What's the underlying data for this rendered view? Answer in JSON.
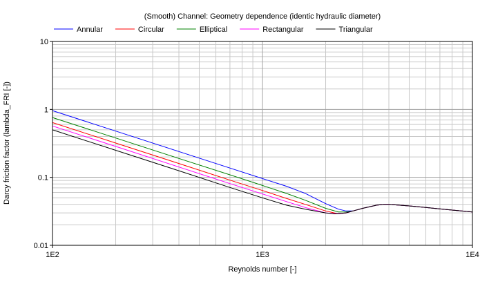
{
  "chart_data": {
    "type": "line",
    "title": "(Smooth) Channel: Geometry dependence (identic hydraulic diameter)",
    "xlabel": "Reynolds number [-]",
    "ylabel": "Darcy friction factor (lambda_FRI [-])",
    "xscale": "log",
    "yscale": "log",
    "xlim": [
      100,
      10000
    ],
    "ylim": [
      0.01,
      10
    ],
    "x_ticks": [
      {
        "value": 100,
        "label": "1E2"
      },
      {
        "value": 1000,
        "label": "1E3"
      },
      {
        "value": 10000,
        "label": "1E4"
      }
    ],
    "y_ticks": [
      {
        "value": 0.01,
        "label": "0.01"
      },
      {
        "value": 0.1,
        "label": "0.1"
      },
      {
        "value": 1,
        "label": "1"
      },
      {
        "value": 10,
        "label": "10"
      }
    ],
    "grid": true,
    "legend_position": "top",
    "series": [
      {
        "name": "Annular",
        "color": "#0000ff",
        "x": [
          100,
          200,
          400,
          700,
          1000,
          1300,
          1600,
          2000,
          2300,
          2500,
          2700,
          3000,
          3500,
          3800,
          4000,
          5000,
          6000,
          8000,
          10000
        ],
        "y": [
          0.96,
          0.48,
          0.24,
          0.137,
          0.096,
          0.074,
          0.058,
          0.041,
          0.034,
          0.032,
          0.032,
          0.035,
          0.039,
          0.04,
          0.04,
          0.038,
          0.036,
          0.033,
          0.031
        ]
      },
      {
        "name": "Circular",
        "color": "#ff0000",
        "x": [
          100,
          200,
          400,
          700,
          1000,
          1300,
          1600,
          2000,
          2300,
          2500,
          2700,
          3000,
          3500,
          3800,
          4000,
          5000,
          6000,
          8000,
          10000
        ],
        "y": [
          0.64,
          0.32,
          0.16,
          0.091,
          0.064,
          0.049,
          0.04,
          0.032,
          0.029,
          0.03,
          0.032,
          0.035,
          0.039,
          0.04,
          0.04,
          0.038,
          0.036,
          0.033,
          0.031
        ]
      },
      {
        "name": "Elliptical",
        "color": "#008000",
        "x": [
          100,
          200,
          400,
          700,
          1000,
          1300,
          1600,
          2000,
          2300,
          2500,
          2700,
          3000,
          3500,
          3800,
          4000,
          5000,
          6000,
          8000,
          10000
        ],
        "y": [
          0.76,
          0.38,
          0.19,
          0.109,
          0.076,
          0.058,
          0.046,
          0.035,
          0.031,
          0.031,
          0.032,
          0.035,
          0.039,
          0.04,
          0.04,
          0.038,
          0.036,
          0.033,
          0.031
        ]
      },
      {
        "name": "Rectangular",
        "color": "#ff00ff",
        "x": [
          100,
          200,
          400,
          700,
          1000,
          1300,
          1600,
          2000,
          2300,
          2500,
          2700,
          3000,
          3500,
          3800,
          4000,
          5000,
          6000,
          8000,
          10000
        ],
        "y": [
          0.57,
          0.285,
          0.142,
          0.081,
          0.057,
          0.044,
          0.036,
          0.03,
          0.029,
          0.03,
          0.032,
          0.035,
          0.039,
          0.04,
          0.04,
          0.038,
          0.036,
          0.033,
          0.031
        ]
      },
      {
        "name": "Triangular",
        "color": "#000000",
        "x": [
          100,
          200,
          400,
          700,
          1000,
          1300,
          1600,
          2000,
          2200,
          2500,
          2700,
          3000,
          3500,
          3800,
          4000,
          5000,
          6000,
          8000,
          10000
        ],
        "y": [
          0.5,
          0.25,
          0.125,
          0.071,
          0.05,
          0.039,
          0.034,
          0.03,
          0.029,
          0.03,
          0.032,
          0.035,
          0.039,
          0.04,
          0.04,
          0.038,
          0.036,
          0.033,
          0.031
        ]
      }
    ]
  }
}
